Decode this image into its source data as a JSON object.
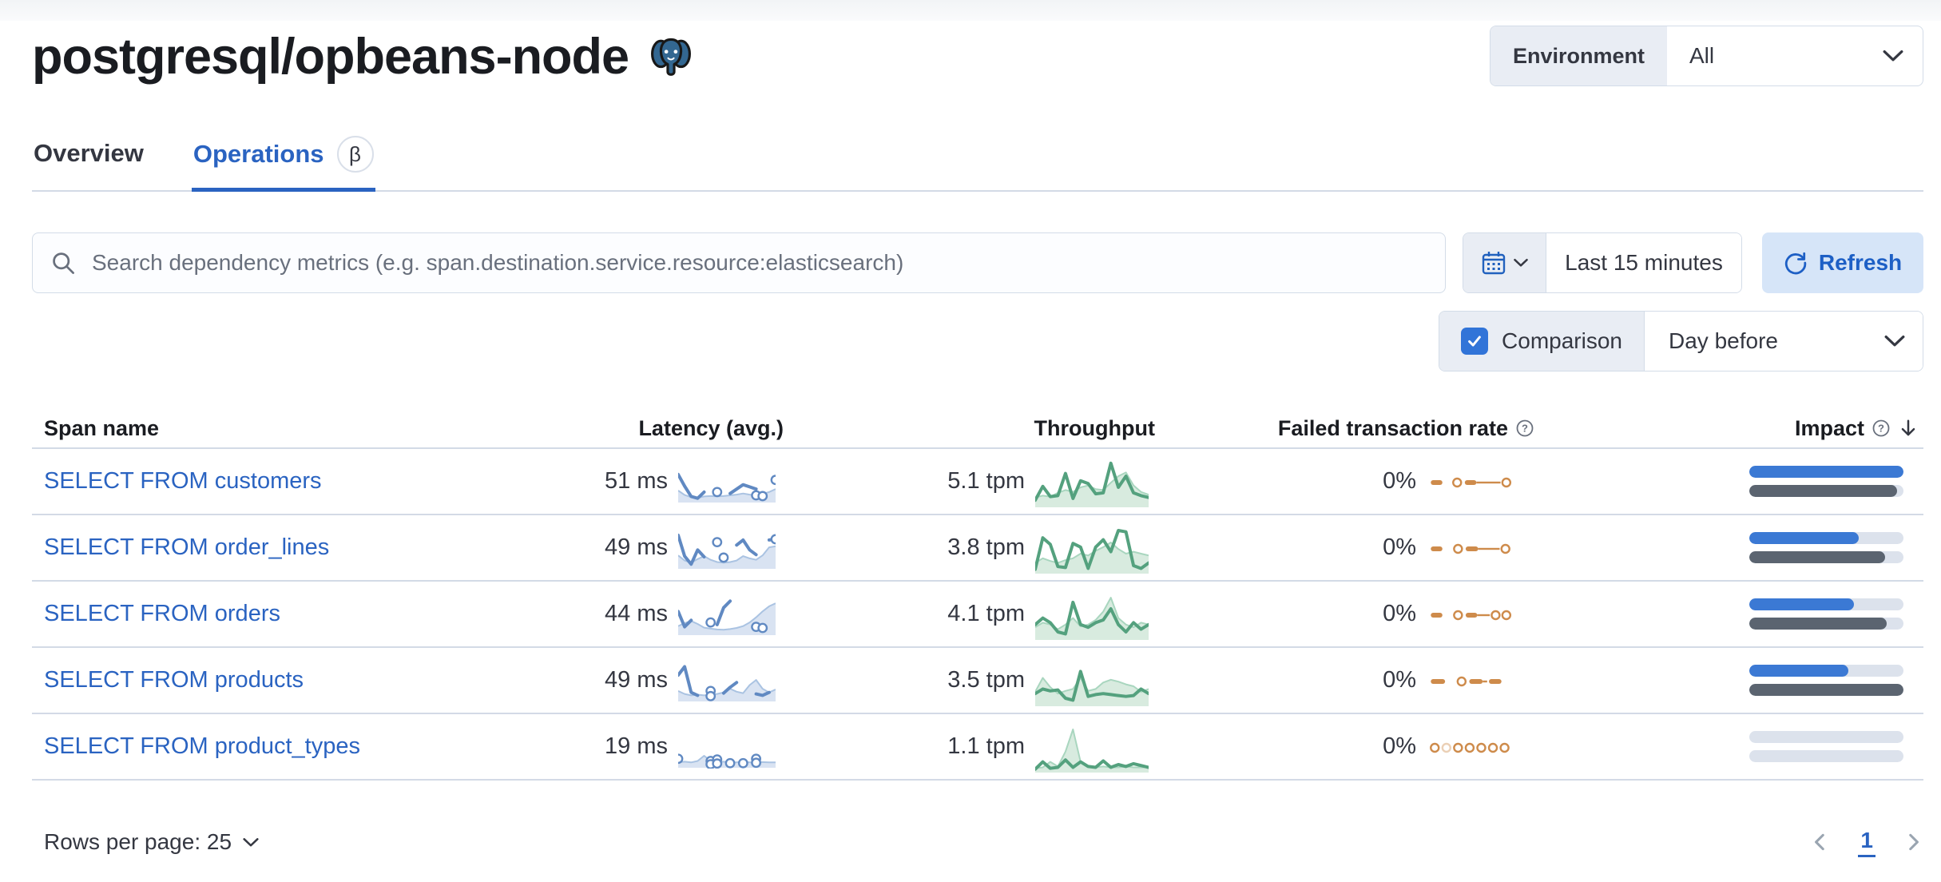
{
  "header": {
    "title": "postgresql/opbeans-node",
    "environment_label": "Environment",
    "environment_value": "All"
  },
  "tabs": [
    {
      "label": "Overview",
      "active": false
    },
    {
      "label": "Operations",
      "active": true,
      "badge": "β"
    }
  ],
  "toolbar": {
    "search_placeholder": "Search dependency metrics (e.g. span.destination.service.resource:elasticsearch)",
    "time_range": "Last 15 minutes",
    "refresh_label": "Refresh",
    "comparison_label": "Comparison",
    "comparison_checked": true,
    "comparison_value": "Day before"
  },
  "table": {
    "columns": [
      {
        "label": "Span name"
      },
      {
        "label": "Latency (avg.)"
      },
      {
        "label": "Throughput"
      },
      {
        "label": "Failed transaction rate",
        "help_icon": true
      },
      {
        "label": "Impact",
        "help_icon": true,
        "sorted": "desc"
      }
    ],
    "rows": [
      {
        "name": "SELECT FROM customers",
        "latency": "51 ms",
        "throughput": "5.1 tpm",
        "failed_rate": "0%",
        "impact_pct": 100,
        "impact_prev_pct": 96,
        "latency_spark": {
          "area": [
            26,
            14,
            8,
            6,
            10,
            11,
            10,
            11,
            13,
            15,
            18,
            15,
            13,
            17,
            22,
            30
          ],
          "line": [
            70,
            38,
            10,
            5,
            22,
            null,
            null,
            null,
            18,
            30,
            42,
            36,
            30,
            null,
            null,
            null
          ],
          "dots": [
            [
              6,
              22
            ],
            [
              12,
              13
            ],
            [
              13,
              11
            ],
            [
              15,
              55
            ]
          ]
        },
        "throughput_spark": {
          "area": [
            16,
            20,
            18,
            26,
            32,
            28,
            38,
            42,
            34,
            32,
            48,
            62,
            70,
            42,
            28,
            22
          ],
          "line": [
            10,
            40,
            18,
            20,
            68,
            14,
            52,
            46,
            24,
            26,
            90,
            38,
            62,
            26,
            20,
            16
          ]
        },
        "failed_spark": [
          {
            "t": "dash",
            "x": 2,
            "w": 13
          },
          {
            "t": "dot",
            "x": 27
          },
          {
            "t": "dash",
            "x": 40,
            "w": 13
          },
          {
            "t": "line",
            "x": 53,
            "w": 27
          },
          {
            "t": "dot",
            "x": 82
          }
        ]
      },
      {
        "name": "SELECT FROM order_lines",
        "latency": "49 ms",
        "throughput": "3.8 tpm",
        "failed_rate": "0%",
        "impact_pct": 71,
        "impact_prev_pct": 88,
        "latency_spark": {
          "area": [
            30,
            16,
            10,
            20,
            28,
            18,
            12,
            10,
            12,
            16,
            28,
            22,
            18,
            30,
            52,
            55
          ],
          "line": [
            85,
            28,
            6,
            45,
            26,
            null,
            null,
            null,
            null,
            58,
            72,
            45,
            32,
            null,
            72,
            74
          ],
          "dots": [
            [
              6,
              66
            ],
            [
              7,
              24
            ],
            [
              15,
              74
            ]
          ]
        },
        "throughput_spark": {
          "area": [
            18,
            28,
            22,
            18,
            24,
            28,
            38,
            34,
            44,
            52,
            62,
            48,
            38,
            42,
            38,
            34
          ],
          "line": [
            4,
            72,
            58,
            10,
            8,
            60,
            52,
            6,
            52,
            68,
            42,
            88,
            85,
            12,
            6,
            18
          ]
        },
        "failed_spark": [
          {
            "t": "dash",
            "x": 2,
            "w": 13
          },
          {
            "t": "dot",
            "x": 28
          },
          {
            "t": "dash",
            "x": 41,
            "w": 14
          },
          {
            "t": "line",
            "x": 55,
            "w": 24
          },
          {
            "t": "dot",
            "x": 81
          }
        ]
      },
      {
        "name": "SELECT FROM orders",
        "latency": "44 ms",
        "throughput": "4.1 tpm",
        "failed_rate": "0%",
        "impact_pct": 68,
        "impact_prev_pct": 89,
        "latency_spark": {
          "area": [
            18,
            26,
            32,
            24,
            14,
            11,
            9,
            8,
            10,
            13,
            18,
            28,
            42,
            58,
            72,
            80
          ],
          "line": [
            58,
            16,
            34,
            null,
            null,
            null,
            22,
            68,
            86,
            null,
            null,
            null,
            null,
            null,
            null,
            null
          ],
          "dots": [
            [
              5,
              28
            ],
            [
              12,
              16
            ],
            [
              13,
              13
            ]
          ]
        },
        "throughput_spark": {
          "area": [
            22,
            32,
            28,
            18,
            28,
            42,
            24,
            28,
            38,
            56,
            86,
            42,
            28,
            22,
            32,
            28
          ],
          "line": [
            28,
            42,
            32,
            12,
            8,
            76,
            28,
            22,
            32,
            38,
            62,
            28,
            12,
            32,
            18,
            28
          ]
        },
        "failed_spark": [
          {
            "t": "dash",
            "x": 2,
            "w": 13
          },
          {
            "t": "dot",
            "x": 28
          },
          {
            "t": "dash",
            "x": 41,
            "w": 13
          },
          {
            "t": "line",
            "x": 54,
            "w": 14
          },
          {
            "t": "dot",
            "x": 70
          },
          {
            "t": "dot",
            "x": 82
          }
        ]
      },
      {
        "name": "SELECT FROM products",
        "latency": "49 ms",
        "throughput": "3.5 tpm",
        "failed_rate": "0%",
        "impact_pct": 64,
        "impact_prev_pct": 100,
        "latency_spark": {
          "area": [
            22,
            14,
            10,
            12,
            10,
            12,
            14,
            18,
            28,
            20,
            16,
            38,
            52,
            28,
            18,
            26
          ],
          "line": [
            65,
            88,
            18,
            10,
            null,
            null,
            null,
            16,
            32,
            45,
            null,
            null,
            14,
            10,
            18,
            null
          ],
          "dots": [
            [
              5,
              22
            ],
            [
              5,
              8
            ]
          ]
        },
        "throughput_spark": {
          "area": [
            26,
            56,
            36,
            22,
            28,
            32,
            56,
            28,
            32,
            46,
            52,
            48,
            42,
            38,
            26,
            32
          ],
          "line": [
            22,
            32,
            28,
            30,
            12,
            8,
            70,
            16,
            20,
            22,
            20,
            18,
            16,
            18,
            32,
            22
          ]
        },
        "failed_spark": [
          {
            "t": "dash",
            "x": 2,
            "w": 16
          },
          {
            "t": "dot",
            "x": 32
          },
          {
            "t": "dash",
            "x": 45,
            "w": 15
          },
          {
            "t": "line",
            "x": 60,
            "w": 5
          },
          {
            "t": "dash",
            "x": 67,
            "w": 14
          }
        ]
      },
      {
        "name": "SELECT FROM product_types",
        "latency": "19 ms",
        "throughput": "1.1 tpm",
        "failed_rate": "0%",
        "impact_pct": 0,
        "impact_prev_pct": 0,
        "latency_spark": {
          "area": [
            8,
            10,
            8,
            12,
            26,
            12,
            8,
            10,
            8,
            8,
            10,
            8,
            8,
            9,
            8,
            8
          ],
          "line": [
            null,
            null,
            null,
            null,
            null,
            null,
            null,
            null,
            null,
            null,
            null,
            null,
            null,
            null,
            null,
            null
          ],
          "dots": [
            [
              0,
              18
            ],
            [
              5,
              12
            ],
            [
              5,
              3
            ],
            [
              6,
              16
            ],
            [
              6,
              5
            ],
            [
              8,
              6
            ],
            [
              10,
              6
            ],
            [
              12,
              18
            ],
            [
              12,
              7
            ]
          ]
        },
        "throughput_spark": {
          "area": [
            4,
            6,
            18,
            8,
            40,
            88,
            18,
            8,
            6,
            8,
            6,
            6,
            8,
            6,
            6,
            6
          ],
          "line": [
            2,
            18,
            4,
            6,
            22,
            6,
            18,
            8,
            6,
            20,
            6,
            12,
            8,
            14,
            10,
            6
          ]
        },
        "failed_spark": [
          {
            "t": "dot",
            "x": 2
          },
          {
            "t": "dot",
            "x": 15,
            "faint": true
          },
          {
            "t": "dot",
            "x": 28
          },
          {
            "t": "dot",
            "x": 41
          },
          {
            "t": "dot",
            "x": 54
          },
          {
            "t": "dot",
            "x": 67
          },
          {
            "t": "dot",
            "x": 80
          }
        ]
      }
    ]
  },
  "footer": {
    "rows_per_page_label": "Rows per page: 25",
    "current_page": "1"
  },
  "colors": {
    "accent_blue": "#2a63c1",
    "bar_blue": "#3b79d4",
    "bar_gray": "#5b6470",
    "bar_track": "#dce2ec",
    "spark_blue": "#6089c2",
    "spark_blue_light": "#aac3e2",
    "spark_blue_fill": "#d9e3f2",
    "spark_green": "#54a17e",
    "spark_green_light": "#a9d6bf",
    "spark_green_fill": "#d8ebdf",
    "spark_orange": "#ce8b4b",
    "border": "#d3dae6"
  }
}
